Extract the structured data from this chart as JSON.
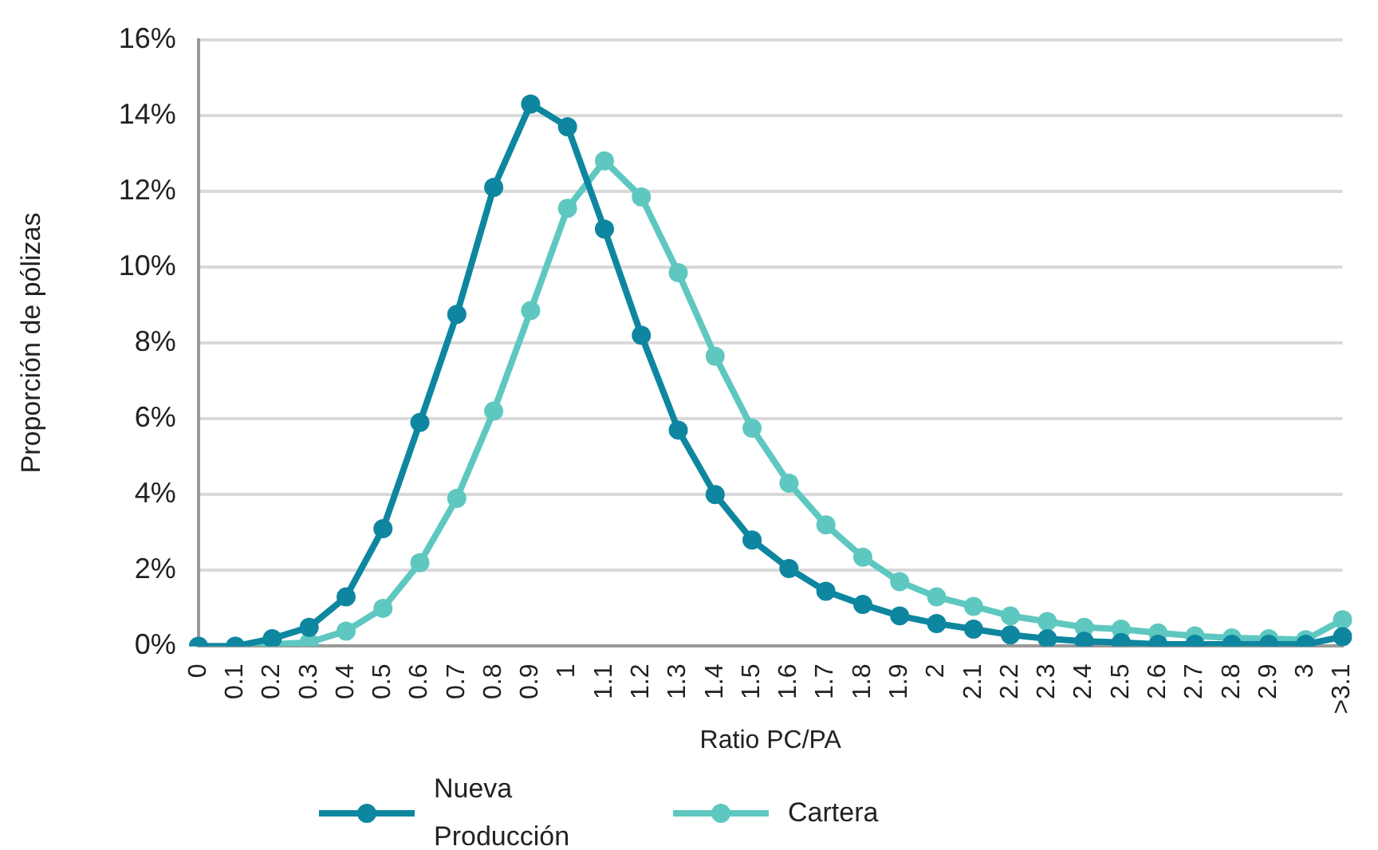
{
  "chart_data": {
    "type": "line",
    "xlabel": "Ratio PC/PA",
    "ylabel": "Proporción de pólizas",
    "categories": [
      "0",
      "0.1",
      "0.2",
      "0.3",
      "0.4",
      "0.5",
      "0.6",
      "0.7",
      "0.8",
      "0.9",
      "1",
      "1.1",
      "1.2",
      "1.3",
      "1.4",
      "1.5",
      "1.6",
      "1.7",
      "1.8",
      "1.9",
      "2",
      "2.1",
      "2.2",
      "2.3",
      "2.4",
      "2.5",
      "2.6",
      "2.7",
      "2.8",
      "2.9",
      "3",
      ">3.1"
    ],
    "series": [
      {
        "name": "Nueva Producción",
        "color": "#0e86a0",
        "values": [
          0,
          0,
          0.2,
          0.5,
          1.3,
          3.1,
          5.9,
          8.75,
          12.1,
          14.3,
          13.7,
          11.0,
          8.2,
          5.7,
          4.0,
          2.8,
          2.05,
          1.45,
          1.1,
          0.8,
          0.6,
          0.45,
          0.3,
          0.2,
          0.13,
          0.1,
          0.05,
          0.05,
          0.05,
          0.05,
          0.05,
          0.25
        ]
      },
      {
        "name": "Cartera",
        "color": "#5ec8c0",
        "values": [
          0,
          0,
          0.05,
          0.1,
          0.4,
          1.0,
          2.2,
          3.9,
          6.2,
          8.85,
          11.55,
          12.8,
          11.85,
          9.85,
          7.65,
          5.75,
          4.3,
          3.2,
          2.35,
          1.7,
          1.3,
          1.05,
          0.8,
          0.65,
          0.5,
          0.45,
          0.35,
          0.27,
          0.22,
          0.2,
          0.17,
          0.7
        ]
      }
    ],
    "ylim": [
      0,
      16
    ],
    "yticks": [
      {
        "value": 0,
        "label": "0%"
      },
      {
        "value": 2,
        "label": "2%"
      },
      {
        "value": 4,
        "label": "4%"
      },
      {
        "value": 6,
        "label": "6%"
      },
      {
        "value": 8,
        "label": "8%"
      },
      {
        "value": 10,
        "label": "10%"
      },
      {
        "value": 12,
        "label": "12%"
      },
      {
        "value": 14,
        "label": "14%"
      },
      {
        "value": 16,
        "label": "16%"
      }
    ],
    "grid": "y",
    "legend": "bottom",
    "marker": "circle",
    "line_style": "solid"
  }
}
